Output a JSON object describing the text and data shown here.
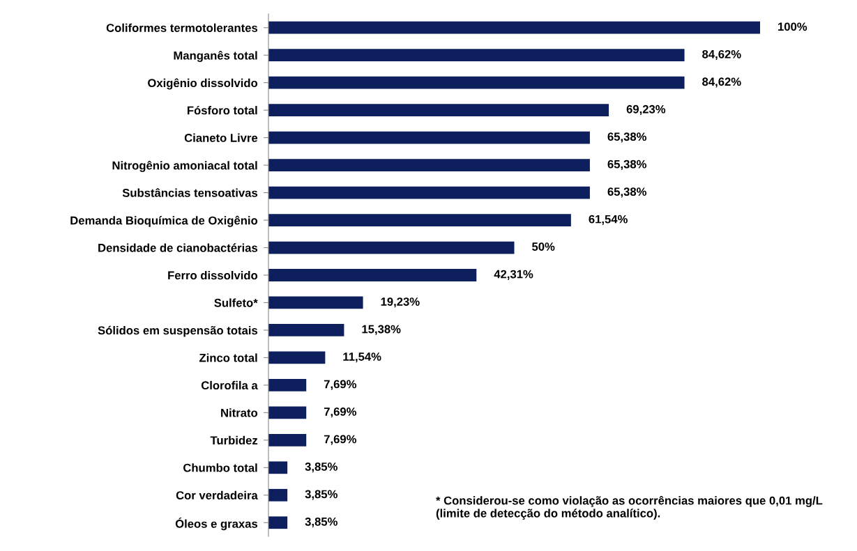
{
  "chart_data": {
    "type": "bar",
    "orientation": "horizontal",
    "color": "#0d1f5c",
    "categories": [
      "Coliformes termotolerantes",
      "Manganês total",
      "Oxigênio dissolvido",
      "Fósforo total",
      "Cianeto Livre",
      "Nitrogênio amoniacal total",
      "Substâncias tensoativas",
      "Demanda Bioquímica de Oxigênio",
      "Densidade de cianobactérias",
      "Ferro dissolvido",
      "Sulfeto*",
      "Sólidos em suspensão totais",
      "Zinco total",
      "Clorofila a",
      "Nitrato",
      "Turbidez",
      "Chumbo total",
      "Cor verdadeira",
      "Óleos e graxas"
    ],
    "values": [
      100,
      84.62,
      84.62,
      69.23,
      65.38,
      65.38,
      65.38,
      61.54,
      50,
      42.31,
      19.23,
      15.38,
      11.54,
      7.69,
      7.69,
      7.69,
      3.85,
      3.85,
      3.85
    ],
    "value_labels": [
      "100%",
      "84,62%",
      "84,62%",
      "69,23%",
      "65,38%",
      "65,38%",
      "65,38%",
      "61,54%",
      "50%",
      "42,31%",
      "19,23%",
      "15,38%",
      "11,54%",
      "7,69%",
      "7,69%",
      "7,69%",
      "3,85%",
      "3,85%",
      "3,85%"
    ],
    "annotations": [
      "* Considerou-se como violação as ocorrências maiores que 0,01 mg/L (limite de detecção do método analítico)."
    ],
    "grid": false,
    "legend": false
  }
}
